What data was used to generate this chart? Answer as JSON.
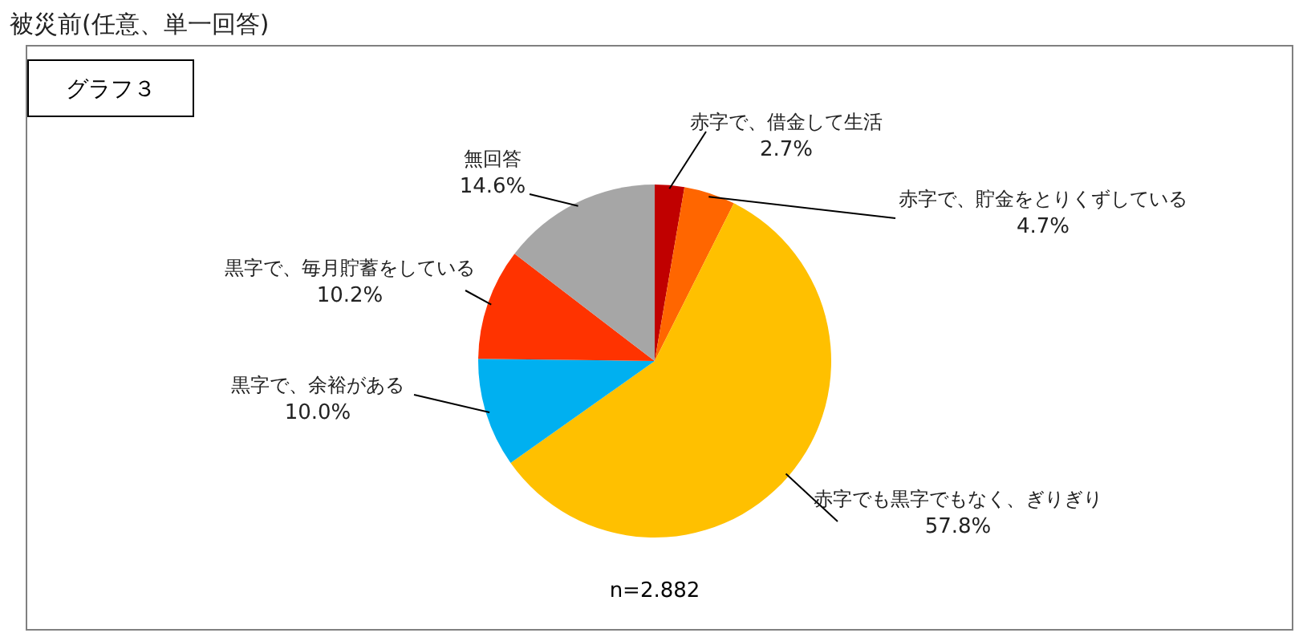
{
  "chart_data": {
    "type": "pie",
    "title": "被災前(任意、単一回答)",
    "subtitle": "グラフ３",
    "categories": [
      "赤字で、借金して生活",
      "赤字で、貯金をとりくずしている",
      "赤字でも黒字でもなく、ぎりぎり",
      "黒字で、余裕がある",
      "黒字で、毎月貯蓄をしている",
      "無回答"
    ],
    "values": [
      2.7,
      4.7,
      57.8,
      10.0,
      10.2,
      14.6
    ],
    "value_labels": [
      "2.7%",
      "4.7%",
      "57.8%",
      "10.0%",
      "10.2%",
      "14.6%"
    ],
    "colors": [
      "#c00000",
      "#ff6600",
      "#ffc000",
      "#00b0f0",
      "#ff3300",
      "#a6a6a6"
    ],
    "annotations": [
      "n=2.882"
    ],
    "legend": false
  }
}
